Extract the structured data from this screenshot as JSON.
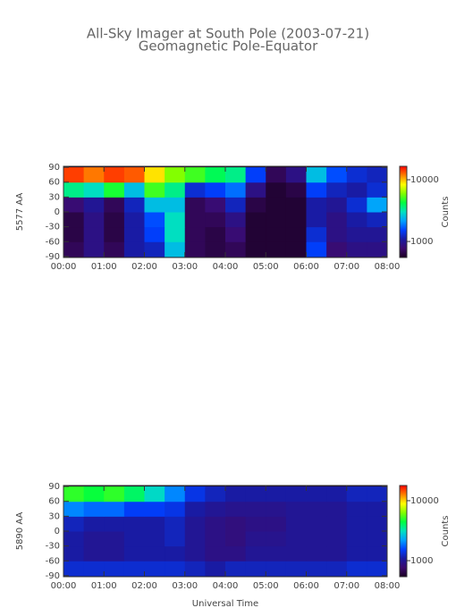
{
  "chart_data": [
    {
      "type": "heatmap",
      "title": "All-Sky Imager at South Pole (2003-07-21)",
      "subtitle": "Geomagnetic Pole-Equator",
      "ylabel": "5577 AA",
      "colorbar_label": "Counts",
      "xlim": [
        0,
        8
      ],
      "xticks": [
        {
          "value": 0,
          "label": "00:00"
        },
        {
          "value": 1,
          "label": "01:00"
        },
        {
          "value": 2,
          "label": "02:00"
        },
        {
          "value": 3,
          "label": "03:00"
        },
        {
          "value": 4,
          "label": "04:00"
        },
        {
          "value": 5,
          "label": "05:00"
        },
        {
          "value": 6,
          "label": "06:00"
        },
        {
          "value": 7,
          "label": "07:00"
        },
        {
          "value": 8,
          "label": "08:00"
        }
      ],
      "ylim": [
        -92,
        92
      ],
      "yticks": [
        90,
        60,
        30,
        0,
        -30,
        -60,
        -90
      ],
      "xbins": [
        0,
        0.5,
        1,
        1.5,
        2,
        2.5,
        3,
        3.5,
        4,
        4.5,
        5,
        5.5,
        6,
        6.5,
        7,
        7.5,
        8
      ],
      "ybins": [
        -90,
        -60,
        -30,
        0,
        30,
        60,
        90
      ],
      "clim": [
        550,
        16500
      ],
      "cticks": [
        10000,
        1000
      ],
      "log_color": true,
      "colormap": [
        "#1a0022",
        "#3b0a6e",
        "#1a1aa0",
        "#0040ff",
        "#00a0ff",
        "#00e0c0",
        "#00ff40",
        "#80ff00",
        "#ffff00",
        "#ff8000",
        "#ff0000"
      ],
      "z": [
        [
          700,
          900,
          700,
          1100,
          1200,
          2500,
          700,
          650,
          700,
          600,
          600,
          600,
          1500,
          800,
          900,
          900
        ],
        [
          650,
          900,
          650,
          1100,
          1500,
          3000,
          700,
          650,
          800,
          600,
          600,
          600,
          1300,
          900,
          1000,
          1000
        ],
        [
          650,
          900,
          650,
          1100,
          1600,
          3000,
          700,
          700,
          900,
          600,
          600,
          600,
          1100,
          900,
          1100,
          1200
        ],
        [
          800,
          1000,
          700,
          1200,
          2500,
          2500,
          700,
          800,
          1200,
          650,
          600,
          600,
          1100,
          1000,
          1300,
          2200
        ],
        [
          3500,
          3000,
          4500,
          2500,
          5000,
          3500,
          1300,
          1500,
          1800,
          900,
          600,
          650,
          1500,
          1200,
          1100,
          1300
        ],
        [
          14000,
          12000,
          14000,
          13000,
          9000,
          6000,
          5000,
          4000,
          3500,
          1500,
          700,
          900,
          2500,
          1600,
          1300,
          1200
        ]
      ]
    },
    {
      "type": "heatmap",
      "ylabel": "5890 AA",
      "colorbar_label": "Counts",
      "xlabel": "Universal Time",
      "xlim": [
        0,
        8
      ],
      "xticks": [
        {
          "value": 0,
          "label": "00:00"
        },
        {
          "value": 1,
          "label": "01:00"
        },
        {
          "value": 2,
          "label": "02:00"
        },
        {
          "value": 3,
          "label": "03:00"
        },
        {
          "value": 4,
          "label": "04:00"
        },
        {
          "value": 5,
          "label": "05:00"
        },
        {
          "value": 6,
          "label": "06:00"
        },
        {
          "value": 7,
          "label": "07:00"
        },
        {
          "value": 8,
          "label": "08:00"
        }
      ],
      "ylim": [
        -92,
        92
      ],
      "yticks": [
        90,
        60,
        30,
        0,
        -30,
        -60,
        -90
      ],
      "xbins": [
        0,
        0.5,
        1,
        1.5,
        2,
        2.5,
        3,
        3.5,
        4,
        4.5,
        5,
        5.5,
        6,
        6.5,
        7,
        7.5,
        8
      ],
      "ybins": [
        -90,
        -60,
        -30,
        0,
        30,
        60,
        90
      ],
      "clim": [
        540,
        17900
      ],
      "cticks": [
        10000,
        1000
      ],
      "log_color": true,
      "colormap": [
        "#1a0022",
        "#3b0a6e",
        "#1a1aa0",
        "#0040ff",
        "#00a0ff",
        "#00e0c0",
        "#00ff40",
        "#80ff00",
        "#ffff00",
        "#ff8000",
        "#ff0000"
      ],
      "z": [
        [
          1300,
          1300,
          1300,
          1300,
          1300,
          1300,
          1200,
          1100,
          1200,
          1200,
          1200,
          1200,
          1200,
          1200,
          1300,
          1300
        ],
        [
          1100,
          1000,
          1000,
          1100,
          1100,
          1100,
          1000,
          900,
          900,
          1000,
          1000,
          1000,
          1000,
          1000,
          1100,
          1100
        ],
        [
          1100,
          1000,
          1000,
          1100,
          1100,
          1200,
          1000,
          900,
          850,
          950,
          950,
          1000,
          1000,
          1000,
          1100,
          1100
        ],
        [
          1200,
          1100,
          1100,
          1100,
          1100,
          1200,
          1000,
          900,
          850,
          900,
          900,
          1000,
          1000,
          1000,
          1100,
          1100
        ],
        [
          2000,
          1800,
          1800,
          1500,
          1500,
          1400,
          1100,
          1000,
          950,
          950,
          950,
          1000,
          1000,
          1000,
          1100,
          1100
        ],
        [
          5000,
          4500,
          5000,
          4000,
          3000,
          2000,
          1400,
          1200,
          1100,
          1100,
          1100,
          1100,
          1100,
          1100,
          1200,
          1200
        ]
      ]
    }
  ]
}
